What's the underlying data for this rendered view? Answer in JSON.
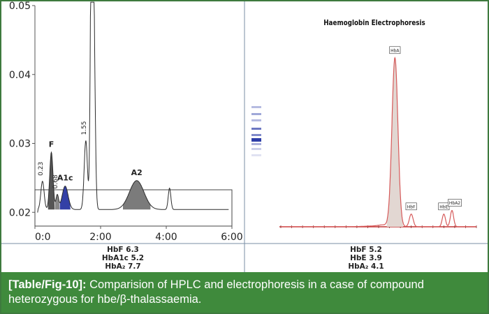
{
  "figure": {
    "label": "[Table/Fig-10]:",
    "caption": " Comparision of HPLC and electrophoresis in a case of compound heterozygous for hbe/β-thalassaemia."
  },
  "chart_data": [
    {
      "type": "line",
      "title": "",
      "xlabel": "",
      "ylabel": "",
      "x_ticks": [
        "0:0",
        "2:00",
        "4:00",
        "6:00"
      ],
      "y_ticks": [
        "0.02",
        "0.03",
        "0.04",
        "0.05"
      ],
      "xlim_min": [
        0,
        6
      ],
      "ylim": [
        0.018,
        0.05
      ],
      "peaks": [
        {
          "label": "0.23",
          "x_min": 0.23,
          "y": 0.0245
        },
        {
          "label": "F",
          "x_min": 0.5,
          "y": 0.0287
        },
        {
          "label": "0.68",
          "x_min": 0.68,
          "y": 0.0225
        },
        {
          "label": "A1c",
          "x_min": 0.92,
          "y": 0.0238
        },
        {
          "label": "1.55",
          "x_min": 1.55,
          "y": 0.0304
        },
        {
          "label": "A2",
          "x_min": 3.1,
          "y": 0.0246
        },
        {
          "label": "",
          "x_min": 4.1,
          "y": 0.0235
        }
      ],
      "table": [
        {
          "name": "HbF",
          "value": "6.3"
        },
        {
          "name": "HbA1c",
          "value": "5.2"
        },
        {
          "name": "HbA₂",
          "value": "7.7"
        }
      ]
    },
    {
      "type": "line",
      "title": "Haemoglobin Electrophoresis",
      "xlabel": "",
      "ylabel": "",
      "x_range": [
        0,
        36
      ],
      "peaks": [
        {
          "label": "HbA",
          "x": 21,
          "height": 0.93
        },
        {
          "label": "HbF",
          "x": 24,
          "height": 0.07
        },
        {
          "label": "HbE",
          "x": 30,
          "height": 0.07
        },
        {
          "label": "HbA2",
          "x": 31.5,
          "height": 0.09
        }
      ],
      "table": [
        {
          "name": "HbF",
          "value": "5.2"
        },
        {
          "name": "HbE",
          "value": "3.9"
        },
        {
          "name": "HbA₂",
          "value": "4.1"
        }
      ]
    }
  ]
}
